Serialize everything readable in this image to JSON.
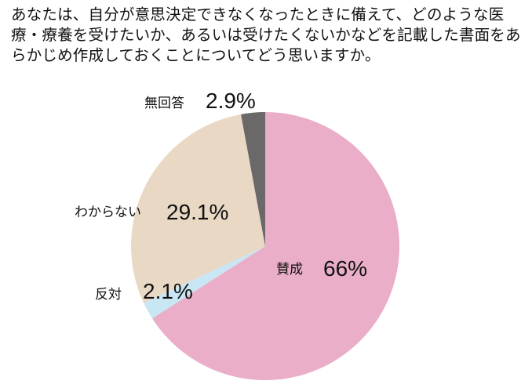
{
  "question": "あなたは、自分が意思決定できなくなったときに備えて、どのような医療・療養を受けたいか、あるいは受けたくないかなどを記載した書面をあらかじめ作成しておくことについてどう思いますか。",
  "chart_data": {
    "type": "pie",
    "title": "",
    "slices": [
      {
        "label": "賛成",
        "value": 66,
        "value_label": "66%",
        "color": "#eaaec8"
      },
      {
        "label": "反対",
        "value": 2.1,
        "value_label": "2.1%",
        "color": "#c9e6f4"
      },
      {
        "label": "わからない",
        "value": 29.1,
        "value_label": "29.1%",
        "color": "#e8d8c4"
      },
      {
        "label": "無回答",
        "value": 2.9,
        "value_label": "2.9%",
        "color": "#6a6868"
      }
    ],
    "start": "12 o'clock",
    "direction": "clockwise"
  }
}
